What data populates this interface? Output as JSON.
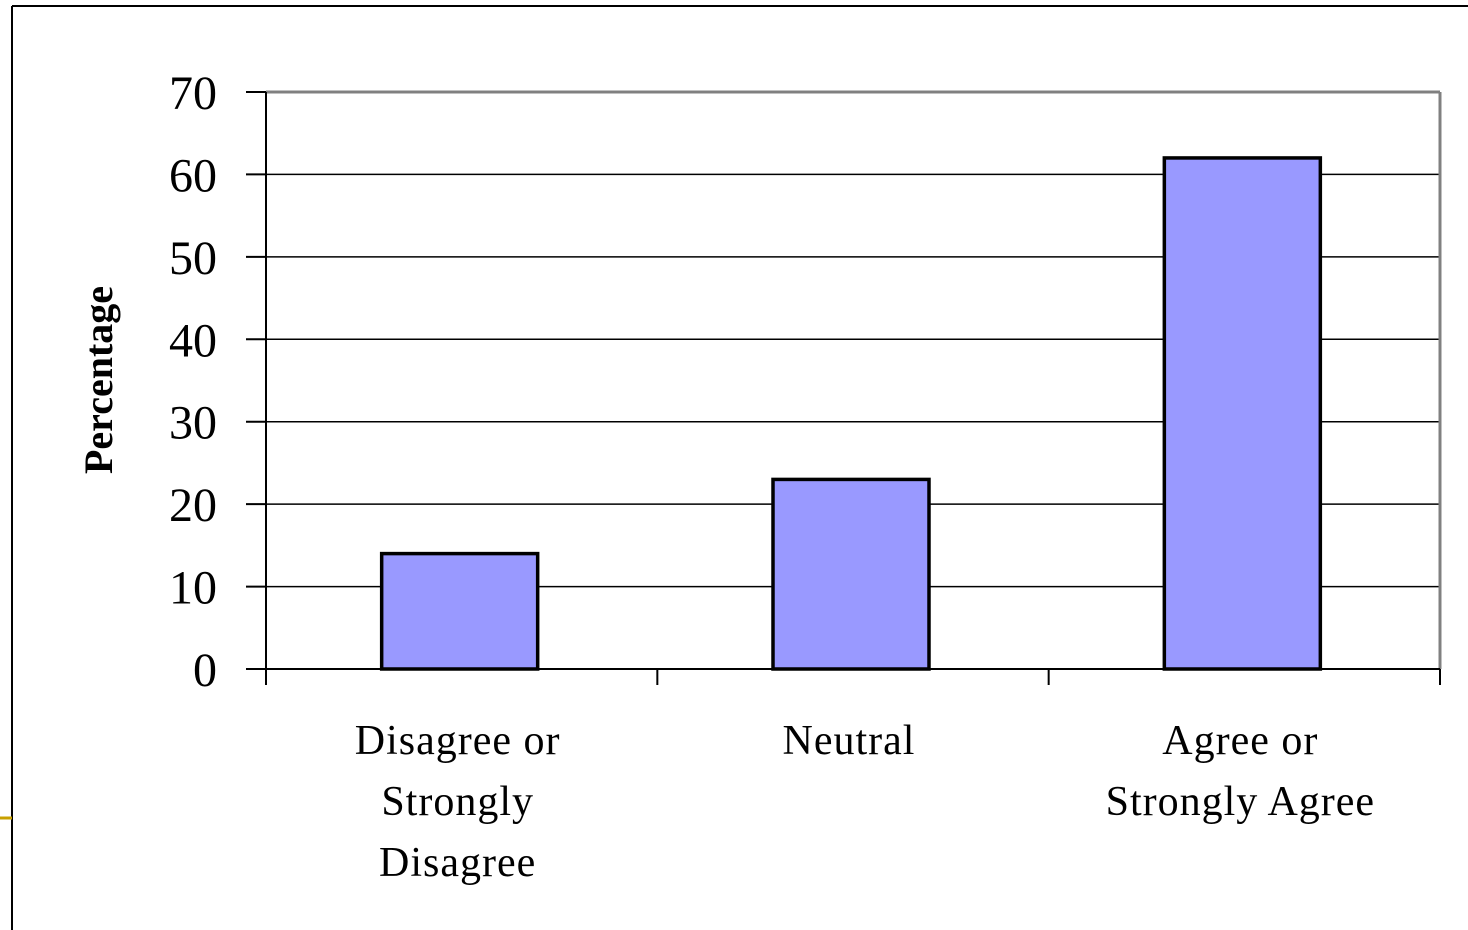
{
  "chart_data": {
    "type": "bar",
    "title": "",
    "xlabel": "",
    "ylabel": "Percentage",
    "ylim": [
      0,
      70
    ],
    "yticks": [
      0,
      10,
      20,
      30,
      40,
      50,
      60,
      70
    ],
    "grid": true,
    "legend": "none",
    "categories": [
      "Disagree or Strongly Disagree",
      "Neutral",
      "Agree or Strongly Agree"
    ],
    "category_label_lines": [
      [
        "Disagree or",
        "Strongly",
        "Disagree"
      ],
      [
        "Neutral"
      ],
      [
        "Agree or",
        "Strongly Agree"
      ]
    ],
    "values": [
      14,
      23,
      62
    ],
    "colors": {
      "bar_fill": "#9999ff",
      "bar_stroke": "#000000",
      "plot_border": "#808080",
      "gridline": "#000000",
      "slide_border": "#000000",
      "slide_accent": "#c8a000"
    }
  }
}
